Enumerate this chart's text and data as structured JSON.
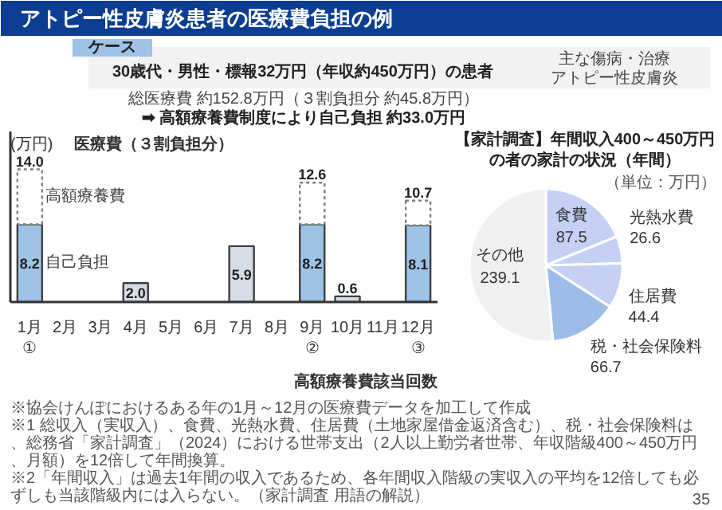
{
  "chart_data": [
    {
      "type": "other",
      "title": "アトピー性皮膚炎患者の医療費負担の例",
      "annotations": [
        "ケース",
        "30歳代・男性・標報32万円（年収約450万円）の患者",
        "主な傷病・治療",
        "アトピー性皮膚炎",
        "総医療費 約152.8万円（３割負担分 約45.8万円）",
        "➡ 高額療養費制度により自己負担 約33.0万円"
      ]
    },
    {
      "type": "bar",
      "stacked": true,
      "ylabel": "(万円)",
      "categories": [
        "1月\n①",
        "2月",
        "3月",
        "4月",
        "5月",
        "6月",
        "7月",
        "8月",
        "9月\n②",
        "10月",
        "11月",
        "12月\n③"
      ],
      "series": [
        {
          "name": "自己負担",
          "colors": [
            "#9dc3e6",
            null,
            null,
            "#d6dce5",
            null,
            null,
            "#d6dce5",
            null,
            "#9dc3e6",
            "#d6dce5",
            null,
            "#9dc3e6"
          ],
          "values": [
            8.2,
            null,
            null,
            2.0,
            null,
            null,
            5.9,
            null,
            8.2,
            0.6,
            null,
            8.1
          ],
          "value_labels": [
            "8.2",
            null,
            null,
            "2.0",
            null,
            null,
            "5.9",
            null,
            "8.2",
            "0.6",
            null,
            "8.1"
          ]
        },
        {
          "name": "高額療養費",
          "color": "#ffffff",
          "line_style": "dashed",
          "values": [
            5.8,
            null,
            null,
            null,
            null,
            null,
            null,
            null,
            4.4,
            null,
            null,
            2.6
          ]
        }
      ],
      "totals": [
        "14.0",
        null,
        null,
        null,
        null,
        null,
        null,
        null,
        "12.6",
        null,
        null,
        "10.7"
      ],
      "ylim": [
        0,
        18
      ],
      "tick_labels": "x",
      "grid": false,
      "annotations": [
        "医療費（３割負担分）",
        "高額療養費該当回数"
      ]
    },
    {
      "type": "pie",
      "title": "【家計調査】年間収入400～450万円の者の家計の状況（年間）",
      "subtitle": "（単位：万円）",
      "categories": [
        "食費",
        "光熱水費",
        "住居費",
        "税・社会保険料",
        "その他"
      ],
      "values": [
        87.5,
        26.6,
        44.4,
        66.7,
        239.1
      ],
      "colors": [
        "#c5d0f5",
        "#c5d0f5",
        "#c5d0f5",
        "#9cbde8",
        "#f0f0f0"
      ],
      "data_labels": true
    },
    {
      "type": "other",
      "annotations": [
        "※協会けんぽにおけるある年の1月～12月の医療費データを加工して作成",
        "※1 総収入（実収入）、食費、光熱水費、住居費（土地家屋借金返済含む）、税・社会保険料は、総務省「家計調査」（2024）における世帯支出（2人以上勤労者世帯、年収階級400～450万円、月額）を12倍して年間換算。",
        "※2「年間収入」は過去1年間の収入であるため、各年間収入階級の実収入の平均を12倍しても必ずしも当該階級内には入らない。（家計調査 用語の解説）",
        "35"
      ]
    }
  ]
}
